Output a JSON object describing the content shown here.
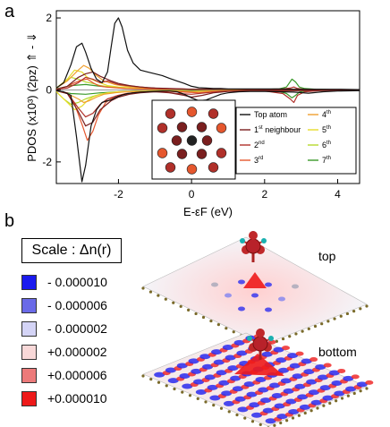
{
  "figure": {
    "panel_a_label": "a",
    "panel_b_label": "b"
  },
  "chart_data": {
    "type": "line",
    "title": "",
    "xlabel": "E-εF (eV)",
    "ylabel": "PDOS (x10³) (2pz) ⇑ - ⇓",
    "xlim": [
      -3.7,
      4.6
    ],
    "ylim": [
      -2.6,
      2.2
    ],
    "x_ticks": [
      -2,
      0,
      2,
      4
    ],
    "y_ticks": [
      -2,
      0,
      2
    ],
    "x_tick_labels": [
      "-2",
      "0",
      "2",
      "4"
    ],
    "y_tick_labels": [
      "-2",
      "0",
      "2"
    ],
    "grid": false,
    "legend_position": "inside-bottom-center",
    "series": [
      {
        "name": "Top atom",
        "color": "#111111",
        "x": [
          -3.7,
          -3.5,
          -3.3,
          -3.15,
          -3.0,
          -2.9,
          -2.75,
          -2.6,
          -2.45,
          -2.3,
          -2.2,
          -2.1,
          -2.0,
          -1.9,
          -1.75,
          -1.6,
          -1.4,
          -1.2,
          -1.0,
          -0.8,
          -0.6,
          -0.4,
          -0.2,
          0.0,
          0.2,
          0.4,
          0.6,
          0.8,
          1.0,
          1.3,
          1.6,
          2.0,
          2.4,
          2.8,
          3.2,
          3.6,
          4.0,
          4.6
        ],
        "up": [
          0.05,
          0.2,
          0.7,
          1.2,
          1.3,
          1.05,
          0.6,
          0.3,
          0.2,
          0.5,
          1.2,
          1.85,
          2.0,
          1.75,
          1.1,
          0.75,
          0.55,
          0.5,
          0.45,
          0.4,
          0.32,
          0.25,
          0.18,
          0.1,
          0.06,
          0.05,
          0.04,
          0.04,
          0.03,
          0.03,
          0.03,
          0.03,
          0.03,
          0.02,
          0.02,
          0.02,
          0.02,
          0.01
        ],
        "down": [
          -0.02,
          -0.05,
          -0.15,
          -1.3,
          -2.55,
          -2.1,
          -1.0,
          -0.55,
          -0.35,
          -0.3,
          -0.28,
          -0.22,
          -0.18,
          -0.14,
          -0.1,
          -0.08,
          -0.06,
          -0.05,
          -0.04,
          -0.03,
          -0.03,
          -0.05,
          -0.12,
          -0.22,
          -0.3,
          -0.28,
          -0.2,
          -0.12,
          -0.08,
          -0.05,
          -0.04,
          -0.04,
          -0.05,
          -0.06,
          -0.09,
          -0.05,
          -0.03,
          -0.02
        ]
      },
      {
        "name": "1st neighbour",
        "color": "#7a1f1f",
        "x": [
          -3.7,
          -3.4,
          -3.1,
          -2.9,
          -2.7,
          -2.5,
          -2.2,
          -2.0,
          -1.7,
          -1.4,
          -1.0,
          -0.6,
          -0.2,
          0.0,
          0.3,
          0.6,
          1.0,
          1.5,
          2.0,
          2.5,
          3.0,
          3.5,
          4.0,
          4.6
        ],
        "up": [
          0.02,
          0.1,
          0.35,
          0.45,
          0.5,
          0.38,
          0.25,
          0.18,
          0.12,
          0.08,
          0.05,
          0.04,
          0.03,
          0.02,
          0.02,
          0.02,
          0.02,
          0.01,
          0.01,
          0.01,
          0.01,
          0.01,
          0.01,
          0.0
        ],
        "down": [
          -0.02,
          -0.1,
          -0.6,
          -1.0,
          -0.9,
          -0.55,
          -0.3,
          -0.2,
          -0.12,
          -0.08,
          -0.05,
          -0.08,
          -0.15,
          -0.2,
          -0.15,
          -0.08,
          -0.04,
          -0.03,
          -0.02,
          -0.02,
          -0.02,
          -0.01,
          -0.01,
          0.0
        ]
      },
      {
        "name": "2nd",
        "color": "#b0302a",
        "x": [
          -3.7,
          -3.4,
          -3.1,
          -2.9,
          -2.7,
          -2.5,
          -2.3,
          -2.0,
          -1.6,
          -1.2,
          -0.8,
          -0.4,
          0.0,
          0.4,
          0.8,
          1.3,
          2.0,
          2.5,
          2.7,
          2.8,
          2.9,
          3.1,
          3.5,
          4.0,
          4.6
        ],
        "up": [
          0.02,
          0.05,
          0.2,
          0.35,
          0.3,
          0.2,
          0.25,
          0.15,
          0.1,
          0.06,
          0.04,
          0.03,
          0.02,
          0.02,
          0.02,
          0.02,
          0.02,
          0.03,
          0.05,
          0.08,
          0.04,
          0.02,
          0.01,
          0.01,
          0.0
        ],
        "down": [
          -0.02,
          -0.08,
          -0.5,
          -0.75,
          -0.65,
          -0.4,
          -0.25,
          -0.15,
          -0.08,
          -0.05,
          -0.05,
          -0.1,
          -0.12,
          -0.08,
          -0.04,
          -0.03,
          -0.03,
          -0.1,
          -0.25,
          -0.35,
          -0.15,
          -0.05,
          -0.02,
          -0.01,
          0.0
        ]
      },
      {
        "name": "3rd",
        "color": "#e5572e",
        "x": [
          -3.7,
          -3.4,
          -3.2,
          -3.0,
          -2.85,
          -2.7,
          -2.55,
          -2.35,
          -2.1,
          -1.8,
          -1.4,
          -1.0,
          -0.6,
          -0.2,
          0.2,
          0.6,
          1.0,
          1.5,
          2.0,
          2.5,
          3.0,
          3.5,
          4.0,
          4.6
        ],
        "up": [
          0.02,
          0.1,
          0.2,
          0.28,
          0.3,
          0.2,
          0.12,
          0.08,
          0.06,
          0.04,
          0.03,
          0.02,
          0.02,
          0.02,
          0.02,
          0.02,
          0.02,
          0.01,
          0.01,
          0.01,
          0.01,
          0.01,
          0.0,
          0.0
        ],
        "down": [
          -0.02,
          -0.1,
          -0.4,
          -0.95,
          -1.4,
          -1.15,
          -0.7,
          -0.35,
          -0.18,
          -0.1,
          -0.06,
          -0.04,
          -0.04,
          -0.06,
          -0.08,
          -0.05,
          -0.03,
          -0.02,
          -0.02,
          -0.02,
          -0.01,
          -0.01,
          0.0,
          0.0
        ]
      },
      {
        "name": "4th",
        "color": "#f0a030",
        "x": [
          -3.7,
          -3.4,
          -3.1,
          -2.95,
          -2.8,
          -2.6,
          -2.4,
          -2.1,
          -1.8,
          -1.4,
          -1.0,
          -0.5,
          0.0,
          0.5,
          1.0,
          1.5,
          2.0,
          2.5,
          3.0,
          3.5,
          4.0,
          4.6
        ],
        "up": [
          0.05,
          0.25,
          0.55,
          0.68,
          0.6,
          0.4,
          0.25,
          0.15,
          0.1,
          0.06,
          0.04,
          0.03,
          0.02,
          0.02,
          0.02,
          0.02,
          0.01,
          0.01,
          0.01,
          0.01,
          0.0,
          0.0
        ],
        "down": [
          -0.02,
          -0.1,
          -0.25,
          -0.35,
          -0.3,
          -0.2,
          -0.12,
          -0.08,
          -0.05,
          -0.04,
          -0.03,
          -0.03,
          -0.04,
          -0.03,
          -0.02,
          -0.02,
          -0.01,
          -0.01,
          -0.01,
          -0.01,
          0.0,
          0.0
        ]
      },
      {
        "name": "5th",
        "color": "#e6dc2a",
        "x": [
          -3.7,
          -3.4,
          -3.2,
          -3.0,
          -2.85,
          -2.7,
          -2.5,
          -2.3,
          -2.0,
          -1.6,
          -1.2,
          -0.8,
          -0.4,
          0.0,
          0.4,
          0.8,
          1.2,
          1.6,
          2.0,
          2.5,
          3.0,
          3.5,
          4.0,
          4.6
        ],
        "up": [
          0.05,
          0.3,
          0.55,
          0.5,
          0.35,
          0.28,
          0.2,
          0.12,
          0.08,
          0.05,
          0.03,
          0.02,
          0.02,
          0.02,
          0.02,
          0.02,
          0.02,
          0.01,
          0.01,
          0.01,
          0.01,
          0.01,
          0.0,
          0.0
        ],
        "down": [
          -0.05,
          -0.35,
          -0.55,
          -0.45,
          -0.3,
          -0.2,
          -0.12,
          -0.08,
          -0.05,
          -0.04,
          -0.03,
          -0.03,
          -0.04,
          -0.05,
          -0.04,
          -0.03,
          -0.02,
          -0.02,
          -0.01,
          -0.01,
          -0.01,
          -0.01,
          0.0,
          0.0
        ]
      },
      {
        "name": "6th",
        "color": "#b6d82c",
        "x": [
          -3.7,
          -3.5,
          -3.3,
          -3.1,
          -2.9,
          -2.7,
          -2.5,
          -2.2,
          -1.9,
          -1.5,
          -1.1,
          -0.7,
          -0.3,
          0.0,
          0.4,
          0.8,
          1.2,
          1.6,
          2.0,
          2.5,
          3.0,
          3.5,
          4.0,
          4.6
        ],
        "up": [
          0.05,
          0.2,
          0.35,
          0.3,
          0.22,
          0.18,
          0.12,
          0.08,
          0.05,
          0.03,
          0.02,
          0.02,
          0.02,
          0.02,
          0.02,
          0.02,
          0.01,
          0.01,
          0.01,
          0.01,
          0.01,
          0.01,
          0.0,
          0.0
        ],
        "down": [
          -0.05,
          -0.25,
          -0.4,
          -0.35,
          -0.25,
          -0.18,
          -0.12,
          -0.08,
          -0.05,
          -0.03,
          -0.02,
          -0.02,
          -0.03,
          -0.04,
          -0.03,
          -0.02,
          -0.02,
          -0.01,
          -0.01,
          -0.01,
          -0.01,
          -0.01,
          0.0,
          0.0
        ]
      },
      {
        "name": "7th",
        "color": "#3a9a2a",
        "x": [
          -3.7,
          -3.3,
          -2.9,
          -2.5,
          -2.0,
          -1.5,
          -1.0,
          -0.5,
          0.0,
          0.5,
          1.0,
          1.5,
          2.0,
          2.4,
          2.6,
          2.75,
          2.85,
          2.95,
          3.1,
          3.4,
          3.8,
          4.2,
          4.6
        ],
        "up": [
          0.03,
          0.12,
          0.15,
          0.1,
          0.06,
          0.04,
          0.03,
          0.02,
          0.02,
          0.02,
          0.02,
          0.02,
          0.02,
          0.03,
          0.08,
          0.3,
          0.22,
          0.08,
          0.04,
          0.02,
          0.01,
          0.01,
          0.0
        ],
        "down": [
          -0.03,
          -0.1,
          -0.12,
          -0.08,
          -0.05,
          -0.03,
          -0.02,
          -0.02,
          -0.02,
          -0.02,
          -0.02,
          -0.02,
          -0.02,
          -0.04,
          -0.1,
          -0.22,
          -0.15,
          -0.06,
          -0.03,
          -0.02,
          -0.01,
          -0.01,
          0.0
        ]
      }
    ],
    "legend_entries": [
      {
        "base": "Top atom",
        "sup": "",
        "color": "#111111"
      },
      {
        "base": "1",
        "sup": "st",
        "tail": " neighbour",
        "color": "#7a1f1f"
      },
      {
        "base": "2",
        "sup": "nd",
        "tail": "",
        "color": "#b0302a"
      },
      {
        "base": "3",
        "sup": "rd",
        "tail": "",
        "color": "#e5572e"
      },
      {
        "base": "4",
        "sup": "th",
        "tail": "",
        "color": "#f0a030"
      },
      {
        "base": "5",
        "sup": "th",
        "tail": "",
        "color": "#e6dc2a"
      },
      {
        "base": "6",
        "sup": "th",
        "tail": "",
        "color": "#b6d82c"
      },
      {
        "base": "7",
        "sup": "th",
        "tail": "",
        "color": "#3a9a2a"
      }
    ],
    "inset_atoms": [
      {
        "ring": "center",
        "color": "#222222"
      },
      {
        "ring": "first",
        "color": "#7a1f1f"
      },
      {
        "ring": "second",
        "color": "#b0302a"
      },
      {
        "ring": "third",
        "color": "#e5572e"
      }
    ]
  },
  "scale": {
    "title": "Scale : Δn(r)",
    "rows": [
      {
        "label": "- 0.000010",
        "color": "#1a1aee"
      },
      {
        "label": "- 0.000006",
        "color": "#6a6ae8"
      },
      {
        "label": "- 0.000002",
        "color": "#d4d4f6"
      },
      {
        "label": "+0.000002",
        "color": "#f8d8d8"
      },
      {
        "label": "+0.000006",
        "color": "#ec7a7a"
      },
      {
        "label": "+0.000010",
        "color": "#ee1a1a"
      }
    ]
  },
  "surfaces": {
    "top_label": "top",
    "bottom_label": "bottom"
  }
}
